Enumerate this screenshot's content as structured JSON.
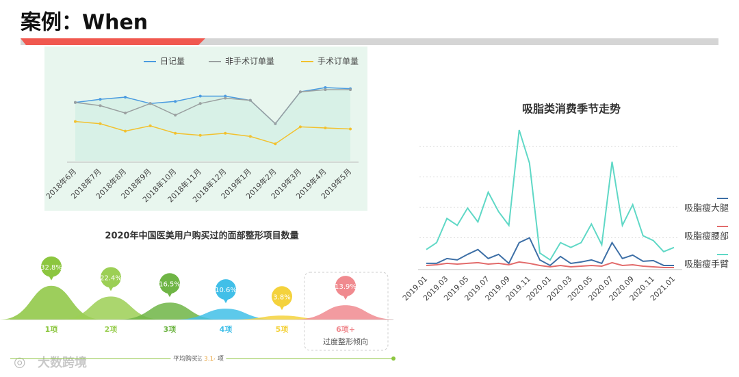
{
  "title": "案例：When",
  "watermark": "大数跨境",
  "chart_data": [
    {
      "type": "line",
      "categories": [
        "2018年6月",
        "2018年7月",
        "2018年8月",
        "2018年9月",
        "2018年10月",
        "2018年11月",
        "2018年12月",
        "2019年1月",
        "2019年2月",
        "2019年3月",
        "2019年4月",
        "2019年5月"
      ],
      "ylim": [
        0,
        100
      ],
      "series": [
        {
          "name": "日记量",
          "color": "#4a9be0",
          "values": [
            55,
            58,
            60,
            54,
            56,
            61,
            61,
            57,
            35,
            65,
            69,
            68
          ]
        },
        {
          "name": "非手术订单量",
          "color": "#9aa0a0",
          "values": [
            55,
            52,
            45,
            54,
            43,
            54,
            59,
            57,
            35,
            65,
            67,
            67
          ]
        },
        {
          "name": "手术订单量",
          "color": "#f2c12e",
          "values": [
            37,
            35,
            28,
            33,
            26,
            24,
            26,
            23,
            16,
            32,
            31,
            30
          ]
        }
      ]
    },
    {
      "type": "mountain",
      "title": "2020年中国医美用户购买过的面部整形项目数量",
      "categories": [
        "1项",
        "2项",
        "3项",
        "4项",
        "5项",
        "6项+"
      ],
      "values": [
        32.8,
        22.4,
        16.5,
        10.6,
        3.8,
        13.9
      ],
      "value_labels": [
        "32.8%",
        "22.4%",
        "16.5%",
        "10.6%",
        "3.8%",
        "13.9%"
      ],
      "colors": [
        "#8cc63f",
        "#9ccf55",
        "#6fb545",
        "#41bfe8",
        "#f4d23c",
        "#f08a8f"
      ],
      "annotation": "过度整形倾向",
      "note_prefix": "平均购买过",
      "average": 3.14,
      "note_suffix": "项"
    },
    {
      "type": "line",
      "title": "吸脂类消费季节走势",
      "categories": [
        "2019.01",
        null,
        "2019.03",
        null,
        "2019.05",
        null,
        "2019.07",
        null,
        "2019.09",
        null,
        "2019.11",
        null,
        "2020.01",
        null,
        "2020.03",
        null,
        "2020.05",
        null,
        "2020.07",
        null,
        "2020.09",
        null,
        "2020.11",
        null,
        "2021.01"
      ],
      "ylim": [
        0,
        100
      ],
      "grid": true,
      "series": [
        {
          "name": "吸脂瘦大腿",
          "color": "#3d6fa6",
          "values": [
            3.5,
            3.5,
            7,
            6,
            10,
            13.5,
            7,
            10,
            3.5,
            18.5,
            22,
            6,
            2,
            8.5,
            3.5,
            4.5,
            6,
            3.5,
            18.5,
            7,
            9.5,
            5,
            5.5,
            2,
            2
          ]
        },
        {
          "name": "吸脂瘦腰部",
          "color": "#e26b6b",
          "values": [
            2,
            2.5,
            3.5,
            3,
            3.5,
            4,
            3,
            3.5,
            2.5,
            4.5,
            3.5,
            2,
            1,
            2,
            1,
            1.5,
            2,
            1.5,
            4,
            2,
            2.5,
            1.5,
            1,
            0.5,
            0.5
          ]
        },
        {
          "name": "吸脂瘦手臂",
          "color": "#5fd8c6",
          "values": [
            13.5,
            18.5,
            36,
            31,
            43.5,
            33.5,
            55,
            41,
            31,
            100,
            76,
            11,
            6,
            18.5,
            15,
            18.5,
            32,
            17,
            77,
            31,
            46,
            23.5,
            20,
            12,
            15
          ]
        }
      ]
    }
  ]
}
